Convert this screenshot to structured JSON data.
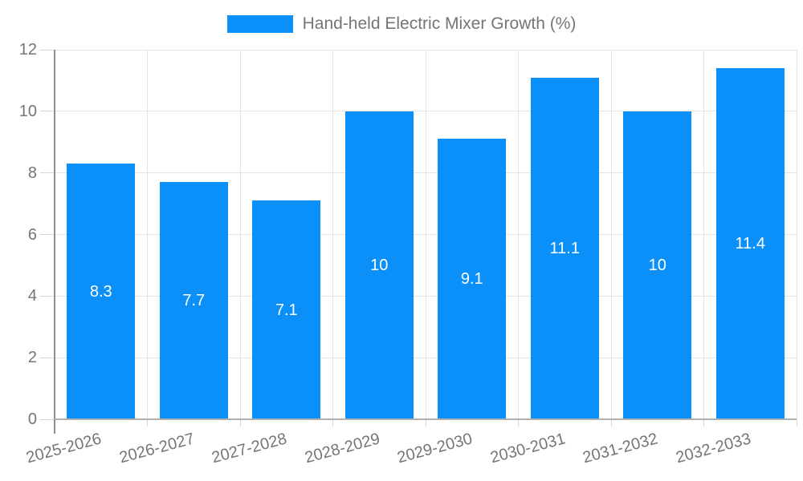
{
  "chart_data": {
    "type": "bar",
    "legend": "Hand-held Electric Mixer Growth (%)",
    "legend_position": "top",
    "categories": [
      "2025-2026",
      "2026-2027",
      "2027-2028",
      "2028-2029",
      "2029-2030",
      "2030-2031",
      "2031-2032",
      "2032-2033"
    ],
    "values": [
      8.3,
      7.7,
      7.1,
      10,
      9.1,
      11.1,
      10,
      11.4
    ],
    "value_labels": [
      "8.3",
      "7.7",
      "7.1",
      "10",
      "9.1",
      "11.1",
      "10",
      "11.4"
    ],
    "xlabel": "",
    "ylabel": "",
    "ylim": [
      0,
      12
    ],
    "yticks": [
      0,
      2,
      4,
      6,
      8,
      10,
      12
    ],
    "ytick_labels": [
      "0",
      "2",
      "4",
      "6",
      "8",
      "10",
      "12"
    ],
    "grid": true,
    "colors": {
      "bar": "#0A90F8",
      "grid": "#E3E3E3",
      "tick": "#D6D6D6",
      "y_axis_line": "#8F8F8F",
      "x_axis_line": "#B0B0B0",
      "axis_text": "#757575",
      "value_label": "#FFFFFF",
      "background": "#FFFFFF"
    }
  }
}
